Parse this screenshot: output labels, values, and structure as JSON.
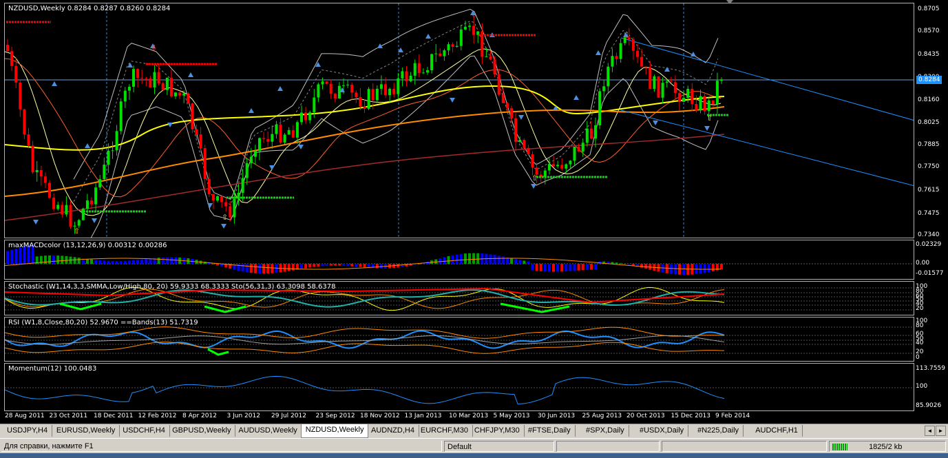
{
  "main": {
    "title": "NZDUSD,Weekly  0.8284 0.8287 0.8260 0.8284",
    "price_levels": [
      "0.8705",
      "0.8570",
      "0.8435",
      "0.8300",
      "0.8160",
      "0.8025",
      "0.7885",
      "0.7750",
      "0.7615",
      "0.7475",
      "0.7340"
    ],
    "current_price": "0.8284"
  },
  "macd": {
    "label": "maxMACDcolor (13,12,26,9) 0.00312 0.00286",
    "levels": [
      "0.02329",
      "0.00",
      "-0.01577"
    ]
  },
  "stoch": {
    "label": "Stochastic (W1,14,3,3,SMMA,Low/High,80, 20) 59.9333 68.3333  Sto(56,31,3) 63.3098 58.6378",
    "levels": [
      "100",
      "80",
      "60",
      "50",
      "40",
      "20"
    ]
  },
  "rsi": {
    "label": "RSI (W1,8,Close,80,20) 52.9670  ==Bands(13) 51.7319",
    "levels": [
      "100",
      "80",
      "60",
      "50",
      "40",
      "20",
      "0"
    ]
  },
  "momentum": {
    "label": "Momentum(12) 100.0483",
    "levels": [
      "113.7559",
      "100",
      "85.9026"
    ]
  },
  "dates": [
    "28 Aug 2011",
    "23 Oct 2011",
    "18 Dec 2011",
    "12 Feb 2012",
    "8 Apr 2012",
    "3 Jun 2012",
    "29 Jul 2012",
    "23 Sep 2012",
    "18 Nov 2012",
    "13 Jan 2013",
    "10 Mar 2013",
    "5 May 2013",
    "30 Jun 2013",
    "25 Aug 2013",
    "20 Oct 2013",
    "15 Dec 2013",
    "9 Feb 2014"
  ],
  "tabs": [
    {
      "label": "USDJPY,H4",
      "active": false
    },
    {
      "label": "EURUSD,Weekly",
      "active": false
    },
    {
      "label": "USDCHF,H4",
      "active": false
    },
    {
      "label": "GBPUSD,Weekly",
      "active": false
    },
    {
      "label": "AUDUSD,Weekly",
      "active": false
    },
    {
      "label": "NZDUSD,Weekly",
      "active": true
    },
    {
      "label": "AUDNZD,H4",
      "active": false
    },
    {
      "label": "EURCHF,M30",
      "active": false
    },
    {
      "label": "CHFJPY,M30",
      "active": false
    },
    {
      "label": "#FTSE,Daily",
      "active": false
    },
    {
      "label": "#SPX,Daily",
      "active": false
    },
    {
      "label": "#USDX,Daily",
      "active": false
    },
    {
      "label": "#N225,Daily",
      "active": false
    },
    {
      "label": "AUDCHF,H1",
      "active": false
    }
  ],
  "status": {
    "help": "Для справки, нажмите F1",
    "profile": "Default",
    "traffic": "1825/2 kb"
  },
  "colors": {
    "bull": "#00e000",
    "bear": "#ff0000",
    "ma_yellow": "#ffff00",
    "ma_orange": "#ff8c00",
    "ma_brown": "#a52a2a",
    "channel": "#1e90ff",
    "band": "#c0c0c0"
  }
}
